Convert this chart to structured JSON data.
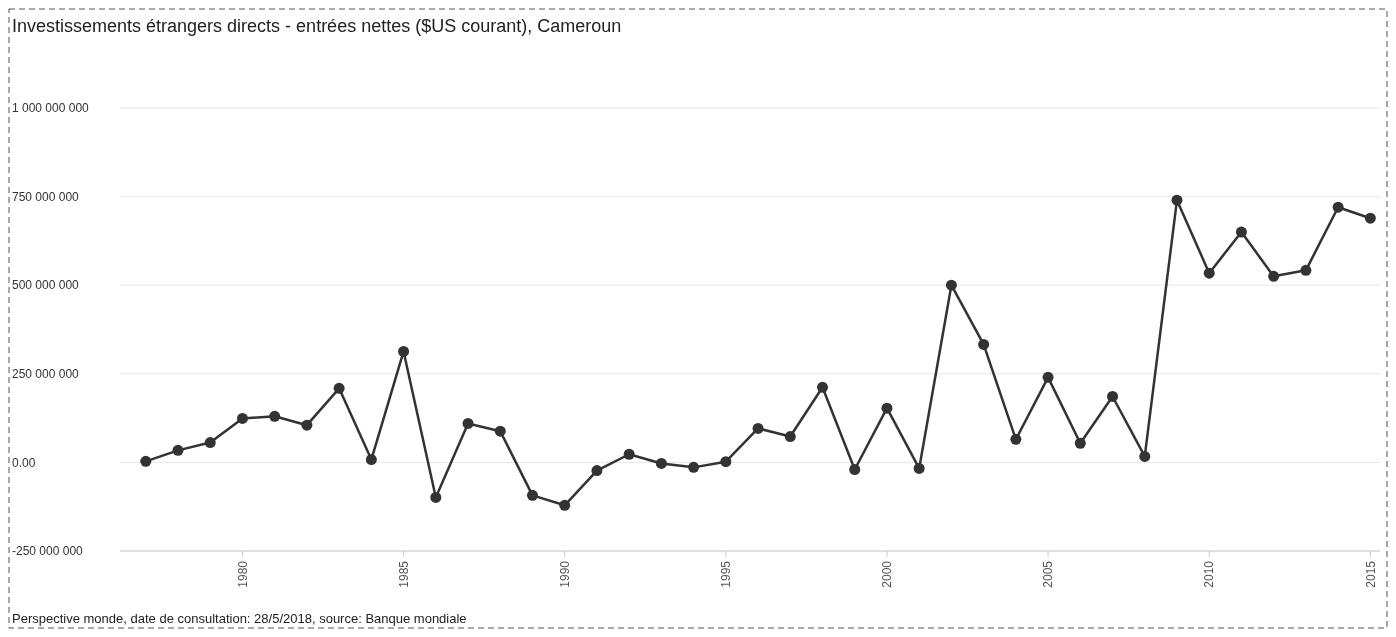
{
  "chart_data": {
    "type": "line",
    "title": "Investissements étrangers directs - entrées nettes ($US courant), Cameroun",
    "x": [
      1977,
      1978,
      1979,
      1980,
      1981,
      1982,
      1983,
      1984,
      1985,
      1986,
      1987,
      1988,
      1989,
      1990,
      1991,
      1992,
      1993,
      1994,
      1995,
      1996,
      1997,
      1998,
      1999,
      2000,
      2001,
      2002,
      2003,
      2004,
      2005,
      2006,
      2007,
      2008,
      2009,
      2010,
      2011,
      2012,
      2013,
      2014,
      2015
    ],
    "series": [
      {
        "color": "#333333",
        "values": [
          3000000,
          34000000,
          56000000,
          124000000,
          130000000,
          105000000,
          209000000,
          8000000,
          313000000,
          -99000000,
          110000000,
          88000000,
          -93000000,
          -121000000,
          -23000000,
          23000000,
          -3000000,
          -14000000,
          2000000,
          96000000,
          73000000,
          212000000,
          -20000000,
          153000000,
          -17000000,
          500000000,
          333000000,
          65000000,
          240000000,
          54000000,
          186000000,
          17000000,
          740000000,
          534000000,
          650000000,
          525000000,
          542000000,
          720000000,
          689000000
        ]
      }
    ],
    "xlim": [
      1976.2,
      2015.3
    ],
    "xticks": [
      1980,
      1985,
      1990,
      1995,
      2000,
      2005,
      2010,
      2015
    ],
    "ylim": [
      -250000000,
      1000000000
    ],
    "yticks": [
      {
        "value": -250000000,
        "label": "-250 000 000"
      },
      {
        "value": 0,
        "label": "0.00"
      },
      {
        "value": 250000000,
        "label": "250 000 000"
      },
      {
        "value": 500000000,
        "label": "500 000 000"
      },
      {
        "value": 750000000,
        "label": "750 000 000"
      },
      {
        "value": 1000000000,
        "label": "1 000 000 000"
      }
    ],
    "grid": "y",
    "marker": "circle",
    "line_style": "solid",
    "annotations": [
      "Perspective monde, date de consultation: 28/5/2018, source: Banque mondiale"
    ]
  }
}
